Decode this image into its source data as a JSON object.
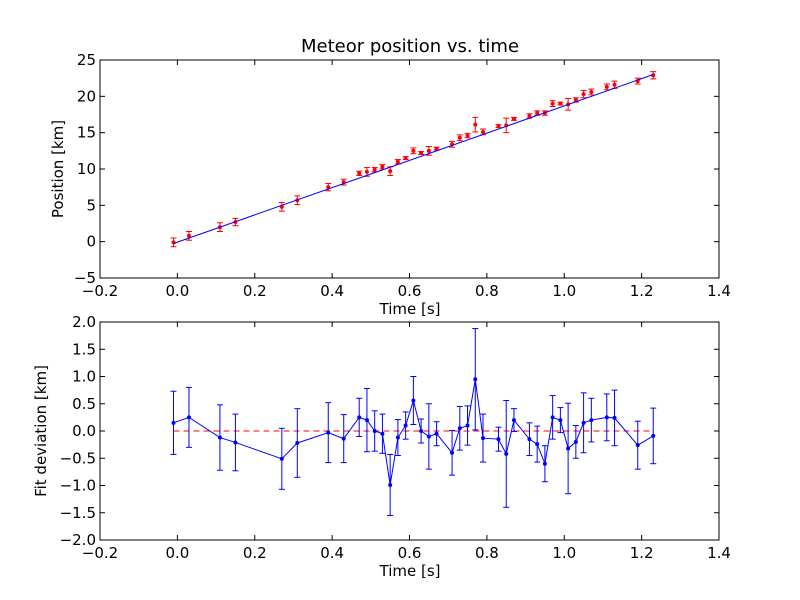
{
  "chart_data": [
    {
      "type": "scatter",
      "title": "Meteor position vs. time",
      "xlabel": "Time [s]",
      "ylabel": "Position [km]",
      "xlim": [
        -0.2,
        1.4
      ],
      "ylim": [
        -5,
        25
      ],
      "xticks": [
        -0.2,
        0.0,
        0.2,
        0.4,
        0.6,
        0.8,
        1.0,
        1.2,
        1.4
      ],
      "xtick_labels": [
        "−0.2",
        "0.0",
        "0.2",
        "0.4",
        "0.6",
        "0.8",
        "1.0",
        "1.2",
        "1.4"
      ],
      "yticks": [
        -5,
        0,
        5,
        10,
        15,
        20,
        25
      ],
      "ytick_labels": [
        "−5",
        "0",
        "5",
        "10",
        "15",
        "20",
        "25"
      ],
      "grid": false,
      "series": [
        {
          "kind": "errorbar",
          "color": "#ff0000",
          "x": [
            -0.01,
            0.03,
            0.11,
            0.15,
            0.27,
            0.31,
            0.39,
            0.43,
            0.47,
            0.49,
            0.51,
            0.53,
            0.55,
            0.57,
            0.59,
            0.61,
            0.63,
            0.65,
            0.67,
            0.71,
            0.73,
            0.75,
            0.77,
            0.79,
            0.83,
            0.85,
            0.87,
            0.91,
            0.93,
            0.95,
            0.97,
            0.99,
            1.01,
            1.03,
            1.05,
            1.07,
            1.11,
            1.13,
            1.19,
            1.23
          ],
          "y": [
            -0.1,
            0.8,
            2.0,
            2.7,
            4.8,
            5.7,
            7.5,
            8.2,
            9.4,
            9.6,
            9.9,
            10.3,
            9.7,
            11.0,
            11.5,
            12.5,
            12.2,
            12.5,
            12.8,
            13.4,
            14.3,
            14.6,
            16.1,
            15.1,
            15.9,
            16.0,
            16.9,
            17.3,
            17.7,
            17.7,
            19.0,
            19.0,
            18.9,
            19.5,
            20.3,
            20.6,
            21.3,
            21.6,
            22.1,
            22.9
          ],
          "yerr": [
            0.6,
            0.6,
            0.6,
            0.5,
            0.6,
            0.6,
            0.5,
            0.4,
            0.3,
            0.6,
            0.3,
            0.3,
            0.6,
            0.3,
            0.2,
            0.4,
            0.2,
            0.6,
            0.2,
            0.4,
            0.4,
            0.3,
            1.0,
            0.4,
            0.2,
            1.0,
            0.2,
            0.3,
            0.3,
            0.3,
            0.4,
            0.2,
            0.8,
            0.3,
            0.5,
            0.4,
            0.4,
            0.5,
            0.4,
            0.5
          ]
        },
        {
          "kind": "line",
          "color": "#0000ff",
          "x": [
            -0.01,
            1.23
          ],
          "y": [
            -0.25,
            23.0
          ]
        }
      ]
    },
    {
      "type": "line",
      "title": "",
      "xlabel": "Time [s]",
      "ylabel": "Fit deviation [km]",
      "xlim": [
        -0.2,
        1.4
      ],
      "ylim": [
        -2.0,
        2.0
      ],
      "xticks": [
        -0.2,
        0.0,
        0.2,
        0.4,
        0.6,
        0.8,
        1.0,
        1.2,
        1.4
      ],
      "xtick_labels": [
        "−0.2",
        "0.0",
        "0.2",
        "0.4",
        "0.6",
        "0.8",
        "1.0",
        "1.2",
        "1.4"
      ],
      "yticks": [
        -2.0,
        -1.5,
        -1.0,
        -0.5,
        0.0,
        0.5,
        1.0,
        1.5,
        2.0
      ],
      "ytick_labels": [
        "−2.0",
        "−1.5",
        "−1.0",
        "−0.5",
        "0.0",
        "0.5",
        "1.0",
        "1.5",
        "2.0"
      ],
      "grid": false,
      "reference_line": {
        "y": 0.0,
        "color": "#ff0000",
        "style": "dashed"
      },
      "series": [
        {
          "kind": "errorbar-line",
          "color": "#0000ff",
          "x": [
            -0.01,
            0.03,
            0.11,
            0.15,
            0.27,
            0.31,
            0.39,
            0.43,
            0.47,
            0.49,
            0.51,
            0.53,
            0.55,
            0.57,
            0.59,
            0.61,
            0.63,
            0.65,
            0.67,
            0.71,
            0.73,
            0.75,
            0.77,
            0.79,
            0.83,
            0.85,
            0.87,
            0.91,
            0.93,
            0.95,
            0.97,
            0.99,
            1.01,
            1.03,
            1.05,
            1.07,
            1.11,
            1.13,
            1.19,
            1.23
          ],
          "y": [
            0.15,
            0.25,
            -0.12,
            -0.21,
            -0.51,
            -0.22,
            -0.03,
            -0.14,
            0.25,
            0.2,
            0.0,
            -0.05,
            -0.99,
            -0.12,
            0.1,
            0.56,
            0.0,
            -0.1,
            -0.05,
            -0.4,
            0.05,
            0.1,
            0.95,
            -0.13,
            -0.15,
            -0.42,
            0.2,
            -0.15,
            -0.24,
            -0.6,
            0.25,
            0.2,
            -0.32,
            -0.2,
            0.15,
            0.2,
            0.25,
            0.24,
            -0.26,
            -0.09
          ],
          "yerr": [
            0.58,
            0.55,
            0.6,
            0.52,
            0.56,
            0.63,
            0.55,
            0.44,
            0.35,
            0.58,
            0.37,
            0.36,
            0.56,
            0.33,
            0.25,
            0.44,
            0.22,
            0.6,
            0.22,
            0.41,
            0.4,
            0.36,
            0.93,
            0.44,
            0.22,
            0.98,
            0.21,
            0.3,
            0.33,
            0.33,
            0.4,
            0.23,
            0.83,
            0.3,
            0.55,
            0.4,
            0.43,
            0.51,
            0.44,
            0.51
          ]
        }
      ]
    }
  ]
}
